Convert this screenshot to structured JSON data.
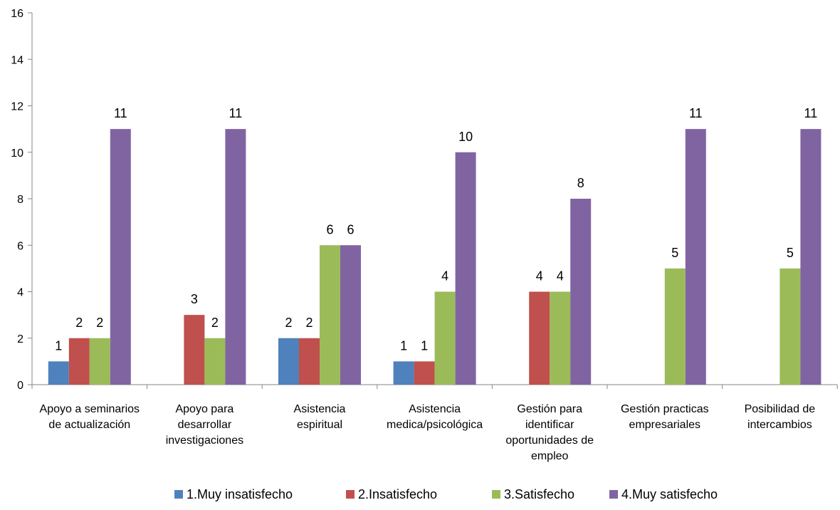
{
  "chart_data": {
    "type": "bar",
    "categories": [
      [
        "Apoyo a seminarios",
        "de actualización"
      ],
      [
        "Apoyo para",
        "desarrollar",
        "investigaciones"
      ],
      [
        "Asistencia",
        "espiritual"
      ],
      [
        "Asistencia",
        "medica/psicológica"
      ],
      [
        "Gestión para",
        "identificar",
        "oportunidades de",
        "empleo"
      ],
      [
        "Gestión practicas",
        "empresariales"
      ],
      [
        "Posibilidad de",
        "intercambios"
      ]
    ],
    "series": [
      {
        "name": "1.Muy insatisfecho",
        "color": "#4F81BD",
        "values": [
          1,
          null,
          2,
          1,
          null,
          null,
          null
        ]
      },
      {
        "name": "2.Insatisfecho",
        "color": "#C0504D",
        "values": [
          2,
          3,
          2,
          1,
          4,
          null,
          null
        ]
      },
      {
        "name": "3.Satisfecho",
        "color": "#9BBB59",
        "values": [
          2,
          2,
          6,
          4,
          4,
          5,
          5
        ]
      },
      {
        "name": "4.Muy satisfecho",
        "color": "#8064A2",
        "values": [
          11,
          11,
          6,
          10,
          8,
          11,
          11
        ]
      }
    ],
    "y_ticks": [
      0,
      2,
      4,
      6,
      8,
      10,
      12,
      14,
      16
    ],
    "ylim": [
      0,
      16
    ],
    "grid": false,
    "legend_position": "bottom",
    "data_labels": true
  }
}
